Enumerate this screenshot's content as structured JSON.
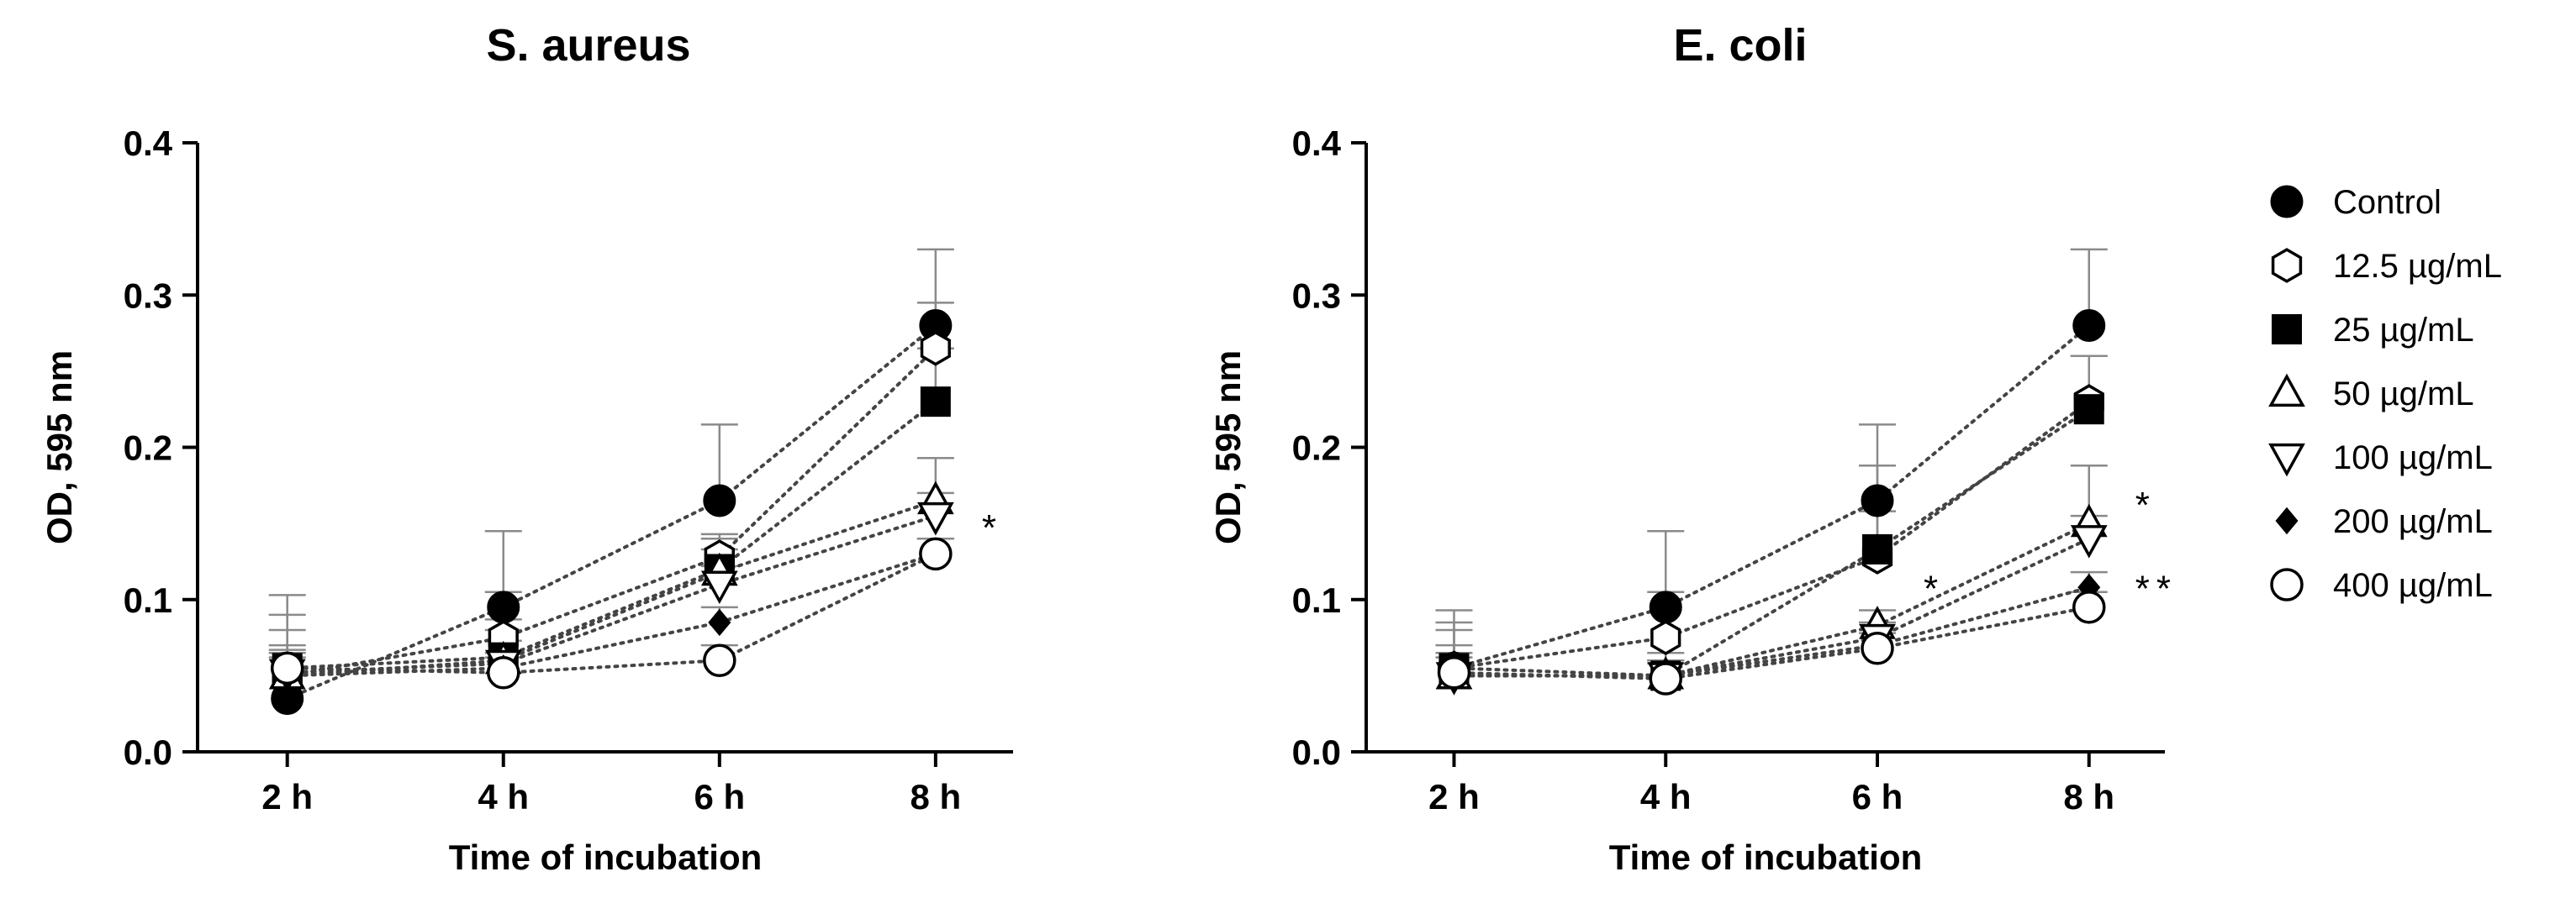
{
  "legend": [
    {
      "name": "Control",
      "marker": "circle-filled"
    },
    {
      "name": "12.5 µg/mL",
      "marker": "hexagon-open"
    },
    {
      "name": "25 µg/mL",
      "marker": "square-filled"
    },
    {
      "name": "50 µg/mL",
      "marker": "triangle-up-open"
    },
    {
      "name": "100 µg/mL",
      "marker": "triangle-down-open"
    },
    {
      "name": "200 µg/mL",
      "marker": "diamond-filled"
    },
    {
      "name": "400 µg/mL",
      "marker": "circle-open"
    }
  ],
  "chart_data": [
    {
      "type": "line",
      "title": "S. aureus",
      "xlabel": "Time of incubation",
      "ylabel": "OD, 595 nm",
      "categories": [
        "2 h",
        "4 h",
        "6 h",
        "8 h"
      ],
      "ylim": [
        0,
        0.4
      ],
      "yticks": [
        "0.0",
        "0.1",
        "0.2",
        "0.3",
        "0.4"
      ],
      "series": [
        {
          "name": "Control",
          "values": [
            0.035,
            0.095,
            0.165,
            0.28
          ],
          "err": [
            0.068,
            0.05,
            0.05,
            0.05
          ]
        },
        {
          "name": "12.5 µg/mL",
          "values": [
            0.05,
            0.075,
            0.128,
            0.265
          ],
          "err": [
            0.03,
            0.03,
            0.015,
            0.03
          ]
        },
        {
          "name": "25 µg/mL",
          "values": [
            0.055,
            0.062,
            0.12,
            0.23
          ],
          "err": [
            0.035,
            0.025,
            0.02,
            0.035
          ]
        },
        {
          "name": "50 µg/mL",
          "values": [
            0.05,
            0.06,
            0.118,
            0.165
          ],
          "err": [
            0.02,
            0.02,
            0.015,
            0.028
          ]
        },
        {
          "name": "100 µg/mL",
          "values": [
            0.052,
            0.058,
            0.11,
            0.155
          ],
          "err": [
            0.015,
            0.015,
            0.012,
            0.015
          ]
        },
        {
          "name": "200 µg/mL",
          "values": [
            0.05,
            0.055,
            0.085,
            0.13
          ],
          "err": [
            0.012,
            0.01,
            0.01,
            0.01
          ]
        },
        {
          "name": "400 µg/mL",
          "values": [
            0.055,
            0.052,
            0.06,
            0.13
          ],
          "err": [
            0.01,
            0.01,
            0.01,
            0.01
          ]
        }
      ],
      "annotations": [
        {
          "text": "*",
          "category": "8 h",
          "y": 0.15
        }
      ]
    },
    {
      "type": "line",
      "title": "E. coli",
      "xlabel": "Time of incubation",
      "ylabel": "OD, 595 nm",
      "categories": [
        "2 h",
        "4 h",
        "6 h",
        "8 h"
      ],
      "ylim": [
        0,
        0.4
      ],
      "yticks": [
        "0.0",
        "0.1",
        "0.2",
        "0.3",
        "0.4"
      ],
      "series": [
        {
          "name": "Control",
          "values": [
            0.055,
            0.095,
            0.165,
            0.28
          ],
          "err": [
            0.038,
            0.05,
            0.05,
            0.05
          ]
        },
        {
          "name": "12.5 µg/mL",
          "values": [
            0.055,
            0.075,
            0.128,
            0.23
          ],
          "err": [
            0.03,
            0.03,
            0.06,
            0.03
          ]
        },
        {
          "name": "25 µg/mL",
          "values": [
            0.055,
            0.05,
            0.133,
            0.225
          ],
          "err": [
            0.025,
            0.015,
            0.025,
            0.035
          ]
        },
        {
          "name": "50 µg/mL",
          "values": [
            0.05,
            0.05,
            0.083,
            0.15
          ],
          "err": [
            0.02,
            0.01,
            0.01,
            0.038
          ]
        },
        {
          "name": "100 µg/mL",
          "values": [
            0.05,
            0.05,
            0.075,
            0.14
          ],
          "err": [
            0.015,
            0.01,
            0.01,
            0.015
          ]
        },
        {
          "name": "200 µg/mL",
          "values": [
            0.05,
            0.05,
            0.07,
            0.108
          ],
          "err": [
            0.012,
            0.01,
            0.01,
            0.01
          ]
        },
        {
          "name": "400 µg/mL",
          "values": [
            0.052,
            0.048,
            0.068,
            0.095
          ],
          "err": [
            0.01,
            0.01,
            0.01,
            0.01
          ]
        }
      ],
      "annotations": [
        {
          "text": "*",
          "category": "6 h",
          "y": 0.11
        },
        {
          "text": "*",
          "category": "8 h",
          "y": 0.165
        },
        {
          "text": "**",
          "category": "8 h",
          "y": 0.11
        }
      ]
    }
  ]
}
